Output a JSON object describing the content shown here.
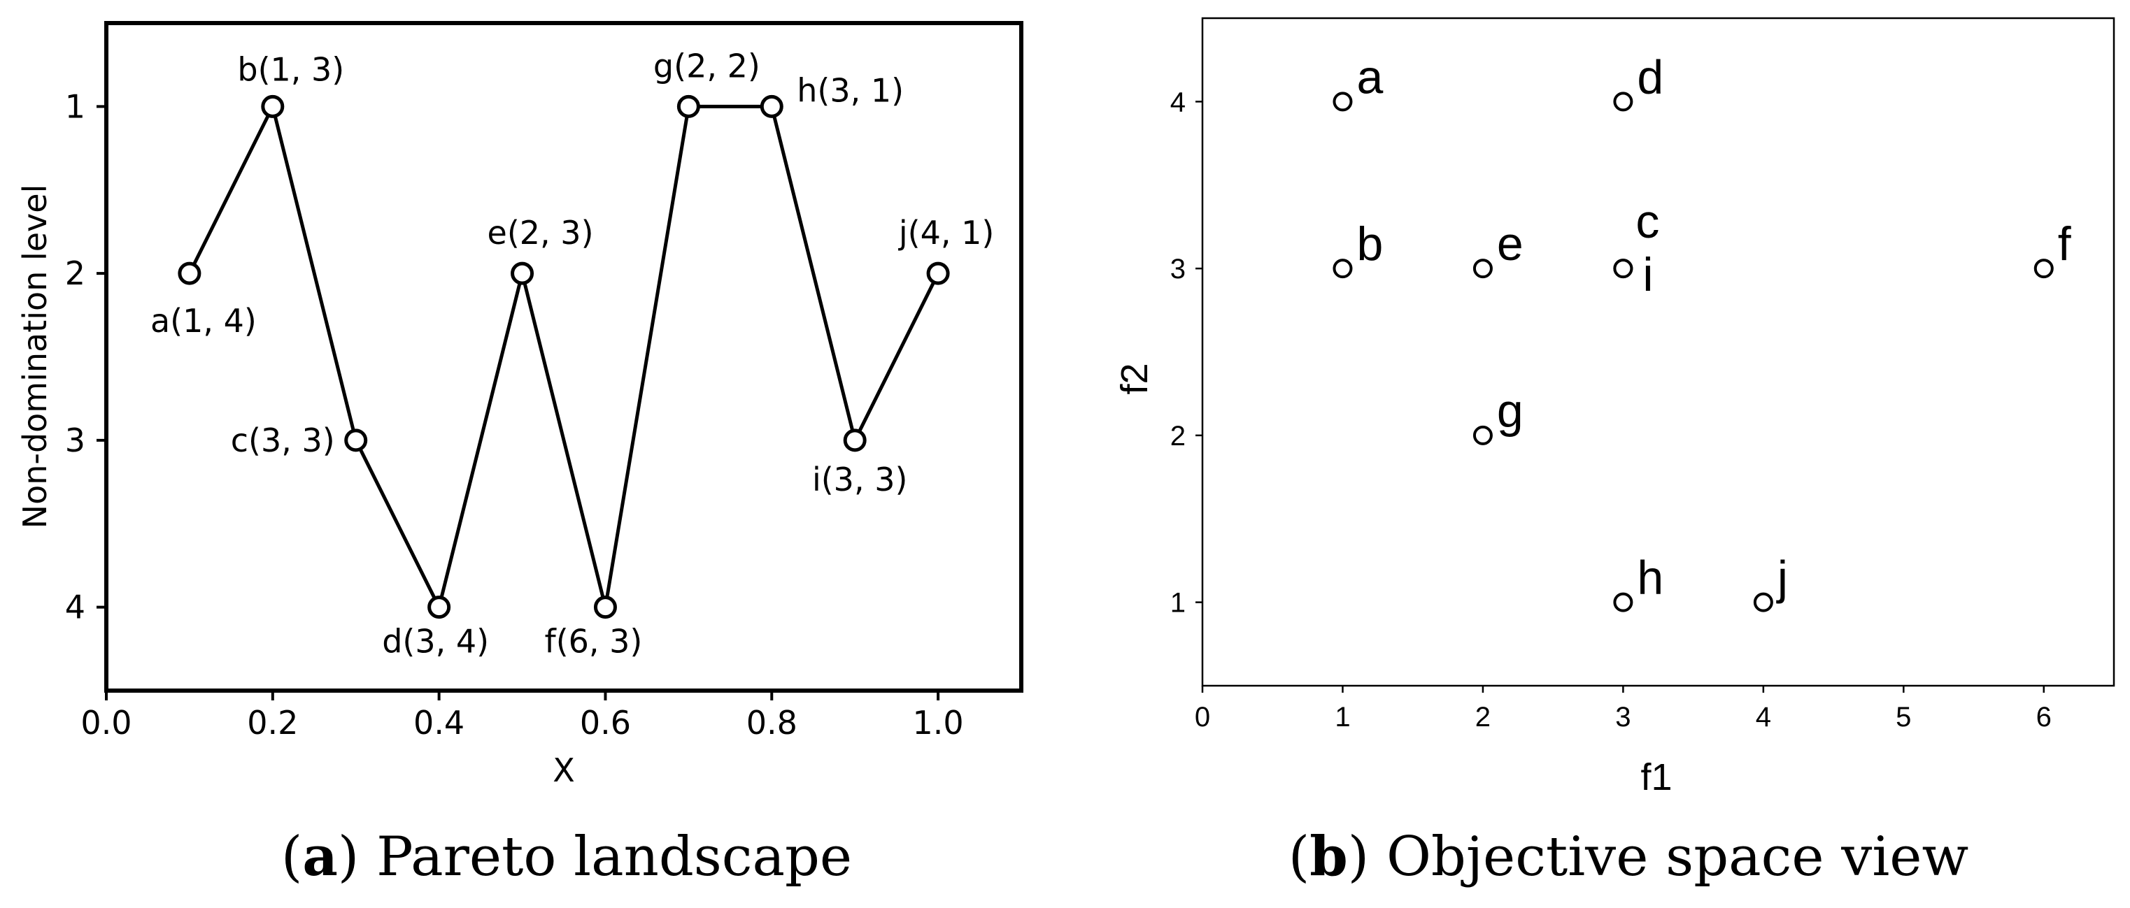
{
  "chart_data": [
    {
      "type": "line",
      "xlabel": "X",
      "ylabel": "Non-domination level",
      "xlim": [
        0.0,
        1.1
      ],
      "ylim": [
        4.5,
        0.5
      ],
      "y_inverted": true,
      "xticks": [
        "0.0",
        "0.2",
        "0.4",
        "0.6",
        "0.8",
        "1.0"
      ],
      "yticks": [
        "1",
        "2",
        "3",
        "4"
      ],
      "points": [
        {
          "x": 0.1,
          "y": 2,
          "label": "a(1, 4)"
        },
        {
          "x": 0.2,
          "y": 1,
          "label": "b(1, 3)"
        },
        {
          "x": 0.3,
          "y": 3,
          "label": "c(3, 3)"
        },
        {
          "x": 0.4,
          "y": 4,
          "label": "d(3, 4)"
        },
        {
          "x": 0.5,
          "y": 2,
          "label": "e(2, 3)"
        },
        {
          "x": 0.6,
          "y": 4,
          "label": "f(6, 3)"
        },
        {
          "x": 0.7,
          "y": 1,
          "label": "g(2, 2)"
        },
        {
          "x": 0.8,
          "y": 1,
          "label": "h(3, 1)"
        },
        {
          "x": 0.9,
          "y": 3,
          "label": "i(3, 3)"
        },
        {
          "x": 1.0,
          "y": 2,
          "label": "j(4, 1)"
        }
      ],
      "grid": false,
      "marker": "open-circle",
      "line_color": "#000000",
      "caption_bold": "a",
      "caption_text": "Pareto landscape"
    },
    {
      "type": "scatter",
      "xlabel": "f1",
      "ylabel": "f2",
      "xlim": [
        0,
        6.5
      ],
      "ylim": [
        0.5,
        4.5
      ],
      "xticks": [
        "0",
        "1",
        "2",
        "3",
        "4",
        "5",
        "6"
      ],
      "yticks": [
        "1",
        "2",
        "3",
        "4"
      ],
      "points": [
        {
          "x": 1,
          "y": 4,
          "label": "a"
        },
        {
          "x": 1,
          "y": 3,
          "label": "b"
        },
        {
          "x": 3,
          "y": 3,
          "label": "c"
        },
        {
          "x": 3,
          "y": 4,
          "label": "d"
        },
        {
          "x": 2,
          "y": 3,
          "label": "e"
        },
        {
          "x": 6,
          "y": 3,
          "label": "f"
        },
        {
          "x": 2,
          "y": 2,
          "label": "g"
        },
        {
          "x": 3,
          "y": 1,
          "label": "h"
        },
        {
          "x": 3,
          "y": 3,
          "label": "i"
        },
        {
          "x": 4,
          "y": 1,
          "label": "j"
        }
      ],
      "grid": false,
      "marker": "open-circle",
      "caption_bold": "b",
      "caption_text": "Objective space view"
    }
  ]
}
